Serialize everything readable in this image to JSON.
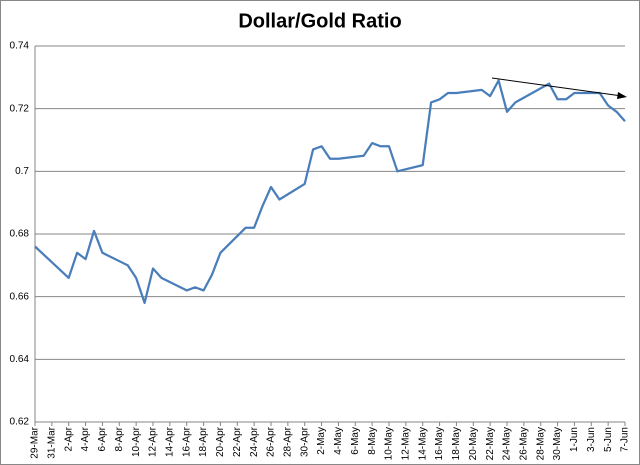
{
  "chart_data": {
    "type": "line",
    "title": "Dollar/Gold Ratio",
    "x": [
      "29-Mar",
      "2-Apr",
      "3-Apr",
      "4-Apr",
      "5-Apr",
      "6-Apr",
      "9-Apr",
      "10-Apr",
      "11-Apr",
      "12-Apr",
      "13-Apr",
      "16-Apr",
      "17-Apr",
      "18-Apr",
      "19-Apr",
      "20-Apr",
      "23-Apr",
      "24-Apr",
      "25-Apr",
      "26-Apr",
      "27-Apr",
      "30-Apr",
      "1-May",
      "2-May",
      "3-May",
      "4-May",
      "7-May",
      "8-May",
      "9-May",
      "10-May",
      "11-May",
      "14-May",
      "15-May",
      "16-May",
      "17-May",
      "18-May",
      "21-May",
      "22-May",
      "23-May",
      "24-May",
      "25-May",
      "29-May",
      "30-May",
      "31-May",
      "1-Jun",
      "4-Jun",
      "5-Jun",
      "6-Jun",
      "7-Jun"
    ],
    "values": [
      0.676,
      0.666,
      0.674,
      0.672,
      0.681,
      0.674,
      0.67,
      0.666,
      0.658,
      0.669,
      0.666,
      0.662,
      0.663,
      0.662,
      0.667,
      0.674,
      0.682,
      0.682,
      0.689,
      0.695,
      0.691,
      0.696,
      0.707,
      0.708,
      0.704,
      0.704,
      0.705,
      0.709,
      0.708,
      0.708,
      0.7,
      0.702,
      0.722,
      0.723,
      0.725,
      0.725,
      0.726,
      0.724,
      0.729,
      0.719,
      0.722,
      0.728,
      0.723,
      0.723,
      0.725,
      0.725,
      0.721,
      0.719,
      0.716
    ],
    "color": "#4a7ebb",
    "xlim": [
      "29-Mar",
      "7-Jun"
    ],
    "xticks": [
      "29-Mar",
      "31-Mar",
      "2-Apr",
      "4-Apr",
      "6-Apr",
      "8-Apr",
      "10-Apr",
      "12-Apr",
      "14-Apr",
      "16-Apr",
      "18-Apr",
      "20-Apr",
      "22-Apr",
      "24-Apr",
      "26-Apr",
      "28-Apr",
      "30-Apr",
      "2-May",
      "4-May",
      "6-May",
      "8-May",
      "10-May",
      "12-May",
      "14-May",
      "16-May",
      "18-May",
      "20-May",
      "22-May",
      "24-May",
      "26-May",
      "28-May",
      "30-May",
      "1-Jun",
      "3-Jun",
      "5-Jun",
      "7-Jun"
    ],
    "ylim": [
      0.62,
      0.74
    ],
    "yticks": [
      0.62,
      0.64,
      0.66,
      0.68,
      0.7,
      0.72,
      0.74
    ],
    "grid": true
  }
}
